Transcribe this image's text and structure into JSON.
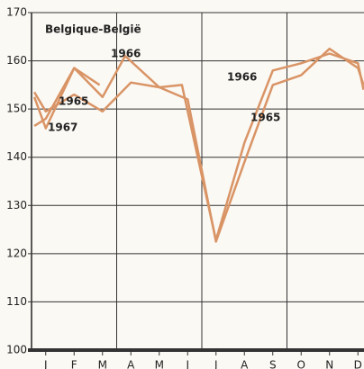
{
  "chart_data": {
    "type": "line",
    "title": "Belgique-België",
    "xlim": [
      0,
      11.7
    ],
    "xticks": [
      {
        "value": 0.5,
        "label": "J"
      },
      {
        "value": 1.5,
        "label": "F"
      },
      {
        "value": 2.5,
        "label": "M"
      },
      {
        "value": 3.5,
        "label": "A"
      },
      {
        "value": 4.5,
        "label": "M"
      },
      {
        "value": 5.5,
        "label": "J"
      },
      {
        "value": 6.5,
        "label": "J"
      },
      {
        "value": 7.5,
        "label": "A"
      },
      {
        "value": 8.5,
        "label": "S"
      },
      {
        "value": 9.5,
        "label": "O"
      },
      {
        "value": 10.5,
        "label": "N"
      },
      {
        "value": 11.5,
        "label": "D"
      }
    ],
    "xgrid": [
      3,
      6,
      9
    ],
    "ylim": [
      100,
      170
    ],
    "yticks": [
      100,
      110,
      120,
      130,
      140,
      150,
      160,
      170
    ],
    "grid": true,
    "series": [
      {
        "name": "1965",
        "color": "#d99466",
        "x": [
          0.1,
          0.5,
          1.5,
          2.5,
          3.5,
          4.5,
          5.5,
          6.5,
          7.5,
          8.5,
          9.5,
          10.5,
          11.5,
          11.7
        ],
        "values": [
          153.5,
          149.5,
          153,
          149.5,
          155.5,
          154.5,
          152,
          122.5,
          139,
          155,
          157,
          162.5,
          158.5,
          155
        ]
      },
      {
        "name": "1966",
        "color": "#d99466",
        "x": [
          0.1,
          0.5,
          1.5,
          2.5,
          3.3,
          4.5,
          5.3,
          6.5,
          7.5,
          8.5,
          9.5,
          10.5,
          11.5,
          11.7
        ],
        "values": [
          152.5,
          146,
          158.5,
          152.5,
          161,
          154.5,
          155,
          122.8,
          143,
          158,
          159.5,
          161.5,
          159.5,
          154
        ]
      },
      {
        "name": "1967",
        "color": "#d99466",
        "x": [
          0.1,
          0.5,
          1.5,
          2.4
        ],
        "values": [
          146.5,
          148,
          158.5,
          155
        ]
      }
    ]
  }
}
